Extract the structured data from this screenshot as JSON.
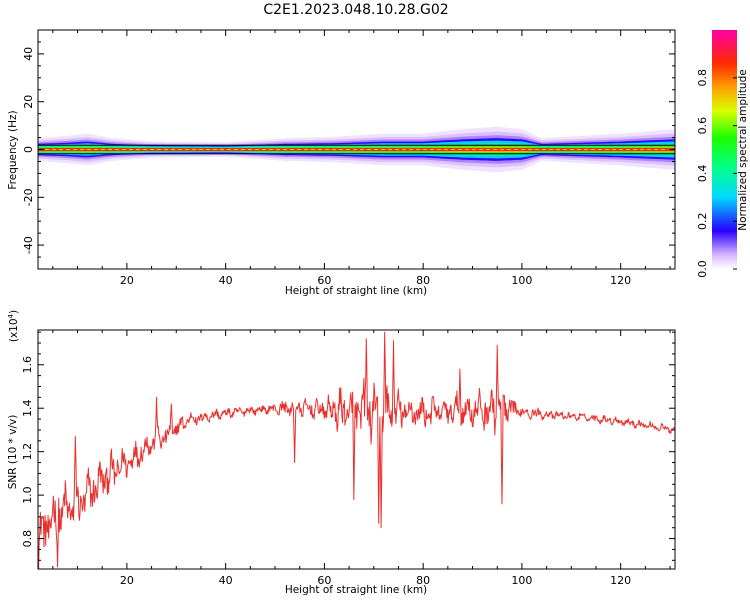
{
  "title": "C2E1.2023.048.10.28.G02",
  "chart_data": [
    {
      "type": "heatmap",
      "xlabel": "Height of straight line (km)",
      "ylabel": "Frequency (Hz)",
      "xlim": [
        2,
        131
      ],
      "ylim": [
        -50,
        50
      ],
      "xticks": [
        20,
        40,
        60,
        80,
        100,
        120
      ],
      "yticks": [
        -40,
        -20,
        0,
        20,
        40
      ],
      "colorbar": {
        "label": "Normalized spectral amplitude",
        "range": [
          0,
          1
        ],
        "ticks": [
          "0.0",
          "0.2",
          "0.4",
          "0.6",
          "0.8"
        ]
      },
      "band_halfwidth_hz": [
        [
          2,
          2.5
        ],
        [
          8,
          3
        ],
        [
          12,
          3.5
        ],
        [
          17,
          2.5
        ],
        [
          25,
          1.8
        ],
        [
          40,
          1.6
        ],
        [
          52,
          2.5
        ],
        [
          62,
          2.8
        ],
        [
          72,
          3.5
        ],
        [
          80,
          3.5
        ],
        [
          88,
          4.5
        ],
        [
          95,
          5
        ],
        [
          100,
          4.5
        ],
        [
          104,
          2.5
        ],
        [
          112,
          3
        ],
        [
          120,
          3.5
        ],
        [
          131,
          4.5
        ]
      ]
    },
    {
      "type": "line",
      "xlabel": "Height of straight line (km)",
      "ylabel": "SNR (10 * v/v)",
      "y_multiplier_label": "(x10",
      "y_multiplier_exp": "4",
      "y_multiplier_close": ")",
      "xlim": [
        2,
        131
      ],
      "ylim": [
        0.66,
        1.76
      ],
      "xticks": [
        20,
        40,
        60,
        80,
        100,
        120
      ],
      "yticks": [
        "0.8",
        "1.0",
        "1.2",
        "1.4",
        "1.6"
      ],
      "series_color": "#e8312f",
      "trend": [
        [
          2,
          0.8
        ],
        [
          6,
          0.92
        ],
        [
          10,
          0.95
        ],
        [
          15,
          1.07
        ],
        [
          20,
          1.15
        ],
        [
          25,
          1.24
        ],
        [
          28,
          1.27
        ],
        [
          32,
          1.34
        ],
        [
          38,
          1.37
        ],
        [
          45,
          1.39
        ],
        [
          52,
          1.4
        ],
        [
          55,
          1.4
        ],
        [
          62,
          1.39
        ],
        [
          70,
          1.38
        ],
        [
          80,
          1.38
        ],
        [
          90,
          1.39
        ],
        [
          98,
          1.39
        ],
        [
          105,
          1.37
        ],
        [
          112,
          1.36
        ],
        [
          120,
          1.34
        ],
        [
          131,
          1.3
        ]
      ],
      "amplitude": [
        [
          2,
          0.14
        ],
        [
          10,
          0.12
        ],
        [
          18,
          0.09
        ],
        [
          26,
          0.06
        ],
        [
          35,
          0.03
        ],
        [
          48,
          0.02
        ],
        [
          52,
          0.04
        ],
        [
          60,
          0.05
        ],
        [
          64,
          0.12
        ],
        [
          70,
          0.15
        ],
        [
          76,
          0.09
        ],
        [
          84,
          0.07
        ],
        [
          90,
          0.09
        ],
        [
          96,
          0.11
        ],
        [
          100,
          0.03
        ],
        [
          110,
          0.02
        ],
        [
          131,
          0.02
        ]
      ],
      "spikes": [
        [
          71.5,
          0.85
        ],
        [
          72.2,
          1.75
        ],
        [
          66,
          0.98
        ],
        [
          74,
          1.71
        ],
        [
          68.5,
          1.72
        ],
        [
          95,
          1.69
        ],
        [
          96,
          0.96
        ],
        [
          54,
          1.15
        ],
        [
          6,
          0.67
        ],
        [
          9.5,
          1.27
        ],
        [
          87.5,
          1.58
        ],
        [
          33,
          1.38
        ],
        [
          26,
          1.45
        ],
        [
          29,
          1.42
        ],
        [
          71,
          0.87
        ]
      ]
    }
  ]
}
